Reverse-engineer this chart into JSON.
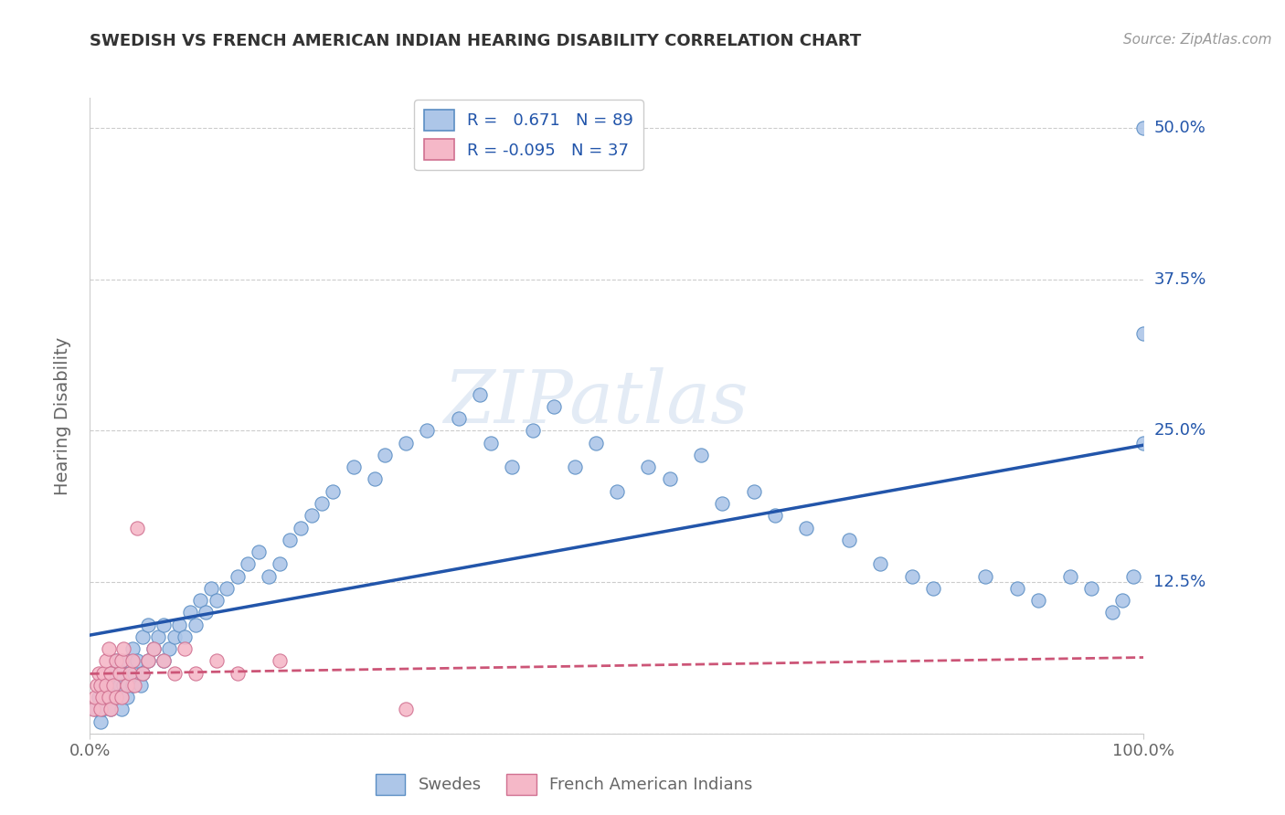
{
  "title": "SWEDISH VS FRENCH AMERICAN INDIAN HEARING DISABILITY CORRELATION CHART",
  "source_text": "Source: ZipAtlas.com",
  "ylabel": "Hearing Disability",
  "legend_bottom": [
    "Swedes",
    "French American Indians"
  ],
  "swede_R": 0.671,
  "swede_N": 89,
  "french_R": -0.095,
  "french_N": 37,
  "swede_color": "#adc6e8",
  "swede_edge_color": "#5b8ec4",
  "swede_line_color": "#2255aa",
  "french_color": "#f5b8c8",
  "french_edge_color": "#d07090",
  "french_line_color": "#cc5577",
  "xlim": [
    0.0,
    1.0
  ],
  "ylim": [
    0.0,
    0.525
  ],
  "yticks": [
    0.0,
    0.125,
    0.25,
    0.375,
    0.5
  ],
  "xticks": [
    0.0,
    1.0
  ],
  "xtick_labels": [
    "0.0%",
    "100.0%"
  ],
  "grid_color": "#cccccc",
  "background_color": "#ffffff",
  "title_color": "#333333",
  "axis_label_color": "#666666",
  "swedes_x": [
    0.005,
    0.008,
    0.01,
    0.01,
    0.012,
    0.015,
    0.018,
    0.02,
    0.02,
    0.022,
    0.025,
    0.025,
    0.028,
    0.03,
    0.03,
    0.032,
    0.035,
    0.035,
    0.038,
    0.04,
    0.04,
    0.042,
    0.045,
    0.048,
    0.05,
    0.05,
    0.055,
    0.055,
    0.06,
    0.065,
    0.07,
    0.07,
    0.075,
    0.08,
    0.085,
    0.09,
    0.095,
    0.1,
    0.105,
    0.11,
    0.115,
    0.12,
    0.13,
    0.14,
    0.15,
    0.16,
    0.17,
    0.18,
    0.19,
    0.2,
    0.21,
    0.22,
    0.23,
    0.25,
    0.27,
    0.28,
    0.3,
    0.32,
    0.35,
    0.37,
    0.38,
    0.4,
    0.42,
    0.44,
    0.46,
    0.48,
    0.5,
    0.53,
    0.55,
    0.58,
    0.6,
    0.63,
    0.65,
    0.68,
    0.72,
    0.75,
    0.78,
    0.8,
    0.85,
    0.88,
    0.9,
    0.93,
    0.95,
    0.97,
    0.98,
    0.99,
    1.0,
    1.0,
    1.0
  ],
  "swedes_y": [
    0.02,
    0.03,
    0.01,
    0.04,
    0.02,
    0.03,
    0.04,
    0.02,
    0.05,
    0.03,
    0.03,
    0.06,
    0.04,
    0.02,
    0.05,
    0.04,
    0.03,
    0.06,
    0.05,
    0.04,
    0.07,
    0.05,
    0.06,
    0.04,
    0.05,
    0.08,
    0.06,
    0.09,
    0.07,
    0.08,
    0.06,
    0.09,
    0.07,
    0.08,
    0.09,
    0.08,
    0.1,
    0.09,
    0.11,
    0.1,
    0.12,
    0.11,
    0.12,
    0.13,
    0.14,
    0.15,
    0.13,
    0.14,
    0.16,
    0.17,
    0.18,
    0.19,
    0.2,
    0.22,
    0.21,
    0.23,
    0.24,
    0.25,
    0.26,
    0.28,
    0.24,
    0.22,
    0.25,
    0.27,
    0.22,
    0.24,
    0.2,
    0.22,
    0.21,
    0.23,
    0.19,
    0.2,
    0.18,
    0.17,
    0.16,
    0.14,
    0.13,
    0.12,
    0.13,
    0.12,
    0.11,
    0.13,
    0.12,
    0.1,
    0.11,
    0.13,
    0.24,
    0.5,
    0.33
  ],
  "french_x": [
    0.003,
    0.005,
    0.007,
    0.008,
    0.01,
    0.01,
    0.012,
    0.013,
    0.015,
    0.015,
    0.018,
    0.018,
    0.02,
    0.02,
    0.022,
    0.025,
    0.025,
    0.028,
    0.03,
    0.03,
    0.032,
    0.035,
    0.038,
    0.04,
    0.042,
    0.045,
    0.05,
    0.055,
    0.06,
    0.07,
    0.08,
    0.09,
    0.1,
    0.12,
    0.14,
    0.18,
    0.3
  ],
  "french_y": [
    0.02,
    0.03,
    0.04,
    0.05,
    0.02,
    0.04,
    0.03,
    0.05,
    0.04,
    0.06,
    0.03,
    0.07,
    0.02,
    0.05,
    0.04,
    0.03,
    0.06,
    0.05,
    0.03,
    0.06,
    0.07,
    0.04,
    0.05,
    0.06,
    0.04,
    0.17,
    0.05,
    0.06,
    0.07,
    0.06,
    0.05,
    0.07,
    0.05,
    0.06,
    0.05,
    0.06,
    0.02
  ]
}
